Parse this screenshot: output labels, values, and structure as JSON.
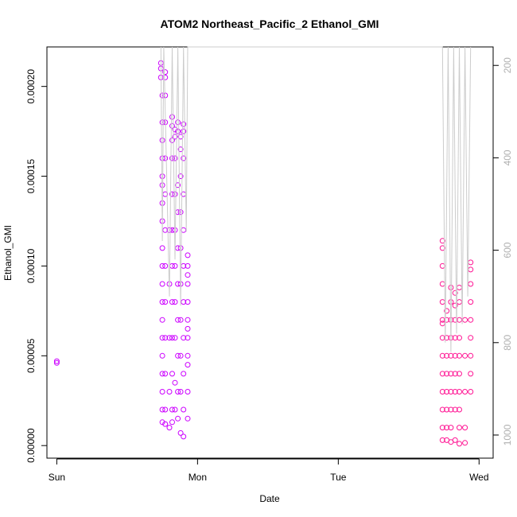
{
  "chart_data": {
    "type": "scatter",
    "title": "ATOM2 Northeast_Pacific_2 Ethanol_GMI",
    "xlabel": "Date",
    "ylabel": "Ethanol_GMI",
    "x_ticks": [
      "Sun",
      "Mon",
      "Tue",
      "Wed"
    ],
    "xlim_days": [
      -0.07,
      3.1
    ],
    "y_ticks": [
      0.0,
      5e-05,
      0.0001,
      0.00015,
      0.0002
    ],
    "y_tick_labels": [
      "0.00000",
      "0.00005",
      "0.00010",
      "0.00015",
      "0.00020"
    ],
    "ylim": [
      -7e-06,
      0.000222
    ],
    "y2_ticks": [
      200,
      400,
      600,
      800,
      1000
    ],
    "y2_label_color": "#b0b0b0",
    "y2lim": [
      1050,
      160
    ],
    "grid": false,
    "legend": "none",
    "series": [
      {
        "color": "#cc00ff",
        "points": [
          [
            0.0,
            4.7e-05
          ],
          [
            0.0,
            4.6e-05
          ],
          [
            0.74,
            0.000213
          ],
          [
            0.74,
            0.00021
          ],
          [
            0.74,
            0.000205
          ],
          [
            0.75,
            0.000195
          ],
          [
            0.75,
            0.00018
          ],
          [
            0.75,
            0.00017
          ],
          [
            0.75,
            0.00016
          ],
          [
            0.75,
            0.00015
          ],
          [
            0.75,
            0.000145
          ],
          [
            0.75,
            0.000135
          ],
          [
            0.75,
            0.000125
          ],
          [
            0.75,
            0.00011
          ],
          [
            0.75,
            0.0001
          ],
          [
            0.75,
            9e-05
          ],
          [
            0.75,
            8e-05
          ],
          [
            0.75,
            7e-05
          ],
          [
            0.75,
            6e-05
          ],
          [
            0.75,
            5e-05
          ],
          [
            0.75,
            4e-05
          ],
          [
            0.75,
            3e-05
          ],
          [
            0.75,
            2e-05
          ],
          [
            0.75,
            1.3e-05
          ],
          [
            0.77,
            0.000208
          ],
          [
            0.77,
            0.000205
          ],
          [
            0.77,
            0.000195
          ],
          [
            0.77,
            0.00018
          ],
          [
            0.77,
            0.00016
          ],
          [
            0.77,
            0.00014
          ],
          [
            0.77,
            0.00012
          ],
          [
            0.77,
            0.0001
          ],
          [
            0.77,
            8e-05
          ],
          [
            0.77,
            6e-05
          ],
          [
            0.77,
            4e-05
          ],
          [
            0.77,
            2e-05
          ],
          [
            0.77,
            1.2e-05
          ],
          [
            0.8,
            1e-05
          ],
          [
            0.8,
            3e-05
          ],
          [
            0.8,
            6e-05
          ],
          [
            0.8,
            9e-05
          ],
          [
            0.8,
            0.00012
          ],
          [
            0.82,
            0.000183
          ],
          [
            0.82,
            0.000178
          ],
          [
            0.82,
            0.00017
          ],
          [
            0.82,
            0.00016
          ],
          [
            0.82,
            0.00014
          ],
          [
            0.82,
            0.00012
          ],
          [
            0.82,
            0.0001
          ],
          [
            0.82,
            8e-05
          ],
          [
            0.82,
            6e-05
          ],
          [
            0.82,
            4e-05
          ],
          [
            0.82,
            2e-05
          ],
          [
            0.82,
            1.3e-05
          ],
          [
            0.84,
            0.000176
          ],
          [
            0.84,
            0.000172
          ],
          [
            0.84,
            0.00016
          ],
          [
            0.84,
            0.00014
          ],
          [
            0.84,
            0.00012
          ],
          [
            0.84,
            0.0001
          ],
          [
            0.84,
            8e-05
          ],
          [
            0.84,
            6e-05
          ],
          [
            0.84,
            3.5e-05
          ],
          [
            0.84,
            2e-05
          ],
          [
            0.86,
            0.00018
          ],
          [
            0.86,
            0.000175
          ],
          [
            0.86,
            0.000145
          ],
          [
            0.86,
            0.00013
          ],
          [
            0.86,
            0.00011
          ],
          [
            0.86,
            9e-05
          ],
          [
            0.86,
            7e-05
          ],
          [
            0.86,
            5e-05
          ],
          [
            0.86,
            3e-05
          ],
          [
            0.86,
            1.5e-05
          ],
          [
            0.88,
            0.000172
          ],
          [
            0.88,
            0.000165
          ],
          [
            0.88,
            0.00015
          ],
          [
            0.88,
            0.00013
          ],
          [
            0.88,
            0.00011
          ],
          [
            0.88,
            9e-05
          ],
          [
            0.88,
            7e-05
          ],
          [
            0.88,
            5e-05
          ],
          [
            0.88,
            3e-05
          ],
          [
            0.88,
            7e-06
          ],
          [
            0.9,
            0.000179
          ],
          [
            0.9,
            0.000175
          ],
          [
            0.9,
            0.00016
          ],
          [
            0.9,
            0.00014
          ],
          [
            0.9,
            0.00012
          ],
          [
            0.9,
            0.0001
          ],
          [
            0.9,
            8e-05
          ],
          [
            0.9,
            6e-05
          ],
          [
            0.9,
            4e-05
          ],
          [
            0.9,
            2e-05
          ],
          [
            0.9,
            5e-06
          ],
          [
            0.93,
            0.000106
          ],
          [
            0.93,
            0.0001
          ],
          [
            0.93,
            9.5e-05
          ],
          [
            0.93,
            9e-05
          ],
          [
            0.93,
            8e-05
          ],
          [
            0.93,
            7e-05
          ],
          [
            0.93,
            6.5e-05
          ],
          [
            0.93,
            6e-05
          ],
          [
            0.93,
            5e-05
          ],
          [
            0.93,
            4.5e-05
          ],
          [
            0.93,
            3e-05
          ],
          [
            0.93,
            1.5e-05
          ]
        ]
      },
      {
        "color": "#ff1493",
        "points": [
          [
            2.74,
            0.000114
          ],
          [
            2.74,
            0.00011
          ],
          [
            2.74,
            0.0001
          ],
          [
            2.74,
            9e-05
          ],
          [
            2.74,
            8e-05
          ],
          [
            2.74,
            7e-05
          ],
          [
            2.74,
            6.8e-05
          ],
          [
            2.74,
            6e-05
          ],
          [
            2.74,
            5e-05
          ],
          [
            2.74,
            4e-05
          ],
          [
            2.74,
            3e-05
          ],
          [
            2.74,
            2e-05
          ],
          [
            2.74,
            1e-05
          ],
          [
            2.74,
            3e-06
          ],
          [
            2.77,
            7.5e-05
          ],
          [
            2.77,
            7e-05
          ],
          [
            2.77,
            6e-05
          ],
          [
            2.77,
            5e-05
          ],
          [
            2.77,
            4e-05
          ],
          [
            2.77,
            3e-05
          ],
          [
            2.77,
            2e-05
          ],
          [
            2.77,
            1e-05
          ],
          [
            2.77,
            3e-06
          ],
          [
            2.8,
            8.8e-05
          ],
          [
            2.8,
            8e-05
          ],
          [
            2.8,
            7e-05
          ],
          [
            2.8,
            6e-05
          ],
          [
            2.8,
            5e-05
          ],
          [
            2.8,
            4e-05
          ],
          [
            2.8,
            3e-05
          ],
          [
            2.8,
            2e-05
          ],
          [
            2.8,
            1e-05
          ],
          [
            2.8,
            2e-06
          ],
          [
            2.83,
            8.5e-05
          ],
          [
            2.83,
            7.8e-05
          ],
          [
            2.83,
            7e-05
          ],
          [
            2.83,
            6e-05
          ],
          [
            2.83,
            5e-05
          ],
          [
            2.83,
            4e-05
          ],
          [
            2.83,
            3e-05
          ],
          [
            2.83,
            2e-05
          ],
          [
            2.83,
            3e-06
          ],
          [
            2.86,
            8.8e-05
          ],
          [
            2.86,
            8e-05
          ],
          [
            2.86,
            7e-05
          ],
          [
            2.86,
            6e-05
          ],
          [
            2.86,
            5e-05
          ],
          [
            2.86,
            4e-05
          ],
          [
            2.86,
            3e-05
          ],
          [
            2.86,
            2e-05
          ],
          [
            2.86,
            1e-05
          ],
          [
            2.86,
            1e-06
          ],
          [
            2.9,
            7e-05
          ],
          [
            2.9,
            5e-05
          ],
          [
            2.9,
            3e-05
          ],
          [
            2.9,
            1e-05
          ],
          [
            2.9,
            1.5e-06
          ],
          [
            2.94,
            0.000102
          ],
          [
            2.94,
            9.8e-05
          ],
          [
            2.94,
            9e-05
          ],
          [
            2.94,
            8e-05
          ],
          [
            2.94,
            7e-05
          ],
          [
            2.94,
            6e-05
          ],
          [
            2.94,
            5e-05
          ],
          [
            2.94,
            4e-05
          ],
          [
            2.94,
            3e-05
          ]
        ]
      }
    ],
    "secondary_line": {
      "color": "#cccccc",
      "points": [
        [
          0.74,
          160
        ],
        [
          0.75,
          580
        ],
        [
          0.76,
          160
        ],
        [
          0.8,
          700
        ],
        [
          0.82,
          160
        ],
        [
          0.84,
          620
        ],
        [
          0.86,
          160
        ],
        [
          0.88,
          720
        ],
        [
          0.9,
          160
        ],
        [
          0.92,
          560
        ],
        [
          0.93,
          160
        ],
        [
          2.74,
          160
        ],
        [
          2.76,
          800
        ],
        [
          2.78,
          160
        ],
        [
          2.8,
          820
        ],
        [
          2.82,
          160
        ],
        [
          2.84,
          780
        ],
        [
          2.86,
          160
        ],
        [
          2.88,
          760
        ],
        [
          2.9,
          160
        ],
        [
          2.92,
          700
        ],
        [
          2.94,
          160
        ]
      ]
    }
  }
}
